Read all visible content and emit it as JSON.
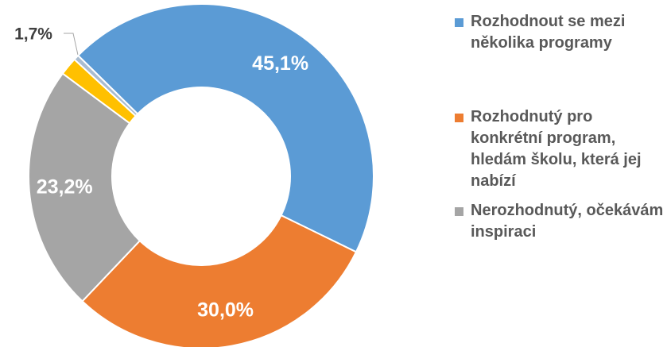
{
  "chart_data": {
    "type": "donut",
    "categories": [
      "Rozhodnout se mezi několika programy",
      "Rozhodnutý pro konkrétní program, hledám školu, která jej nabízí",
      "Nerozhodnutý, očekávám inspiraci",
      null,
      null
    ],
    "values": [
      45.1,
      30.0,
      23.2,
      1.7,
      0.5
    ],
    "value_labels": [
      "45,1%",
      "30,0%",
      "23,2%",
      "1,7%",
      null
    ],
    "colors": [
      "#5b9bd5",
      "#ed7d31",
      "#a5a5a5",
      "#ffc000",
      "#a9bcd0"
    ]
  }
}
